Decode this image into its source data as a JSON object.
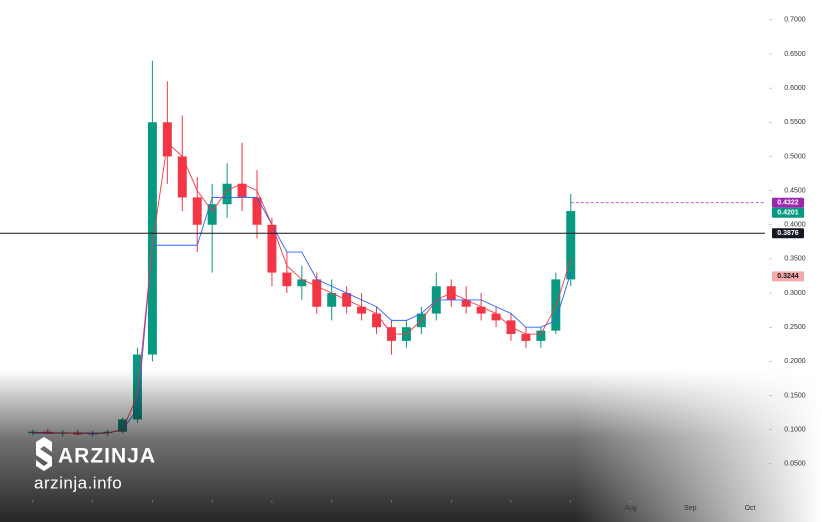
{
  "chart_data": {
    "type": "candlestick",
    "x": [
      0,
      0.25,
      0.5,
      0.75,
      1.0,
      1.25,
      1.5,
      1.75,
      2.0,
      2.25,
      2.5,
      2.75,
      3.0,
      3.25,
      3.5,
      3.75,
      4.0,
      4.25,
      4.5,
      4.75,
      5.0,
      5.25,
      5.5,
      5.75,
      6.0,
      6.25,
      6.5,
      6.75,
      7.0,
      7.25,
      7.5,
      7.75,
      8.0,
      8.25,
      8.5,
      8.75,
      9.0
    ],
    "open": [
      0.095,
      0.097,
      0.094,
      0.096,
      0.093,
      0.095,
      0.097,
      0.115,
      0.21,
      0.55,
      0.5,
      0.44,
      0.4,
      0.43,
      0.46,
      0.44,
      0.4,
      0.33,
      0.31,
      0.32,
      0.28,
      0.3,
      0.28,
      0.27,
      0.25,
      0.23,
      0.25,
      0.27,
      0.31,
      0.29,
      0.28,
      0.27,
      0.26,
      0.24,
      0.23,
      0.245,
      0.32
    ],
    "high": [
      0.1,
      0.101,
      0.099,
      0.1,
      0.098,
      0.1,
      0.118,
      0.22,
      0.64,
      0.61,
      0.56,
      0.47,
      0.46,
      0.49,
      0.52,
      0.48,
      0.41,
      0.36,
      0.34,
      0.33,
      0.32,
      0.31,
      0.3,
      0.28,
      0.26,
      0.26,
      0.28,
      0.33,
      0.32,
      0.31,
      0.3,
      0.28,
      0.27,
      0.25,
      0.25,
      0.33,
      0.445
    ],
    "low": [
      0.092,
      0.093,
      0.09,
      0.092,
      0.09,
      0.091,
      0.095,
      0.11,
      0.2,
      0.46,
      0.42,
      0.36,
      0.33,
      0.41,
      0.42,
      0.38,
      0.31,
      0.3,
      0.29,
      0.27,
      0.26,
      0.27,
      0.26,
      0.24,
      0.21,
      0.22,
      0.24,
      0.26,
      0.28,
      0.27,
      0.26,
      0.25,
      0.23,
      0.22,
      0.22,
      0.24,
      0.31
    ],
    "close": [
      0.097,
      0.094,
      0.096,
      0.093,
      0.095,
      0.097,
      0.115,
      0.21,
      0.55,
      0.5,
      0.44,
      0.4,
      0.43,
      0.46,
      0.44,
      0.4,
      0.33,
      0.31,
      0.32,
      0.28,
      0.3,
      0.28,
      0.27,
      0.25,
      0.23,
      0.25,
      0.27,
      0.31,
      0.29,
      0.28,
      0.27,
      0.26,
      0.24,
      0.23,
      0.245,
      0.32,
      0.42
    ],
    "up_color": "#089981",
    "down_color": "#f23645",
    "series": [
      {
        "color": "#2962ff",
        "values": [
          0.095,
          0.095,
          0.095,
          0.095,
          0.095,
          0.095,
          0.1,
          0.13,
          0.37,
          0.37,
          0.37,
          0.37,
          0.44,
          0.44,
          0.44,
          0.44,
          0.4,
          0.36,
          0.36,
          0.32,
          0.31,
          0.3,
          0.29,
          0.28,
          0.26,
          0.26,
          0.27,
          0.29,
          0.29,
          0.29,
          0.29,
          0.28,
          0.27,
          0.25,
          0.25,
          0.26,
          0.33
        ]
      },
      {
        "color": "#f23645",
        "values": [
          0.096,
          0.096,
          0.095,
          0.095,
          0.094,
          0.095,
          0.1,
          0.15,
          0.37,
          0.52,
          0.5,
          0.45,
          0.42,
          0.45,
          0.46,
          0.45,
          0.4,
          0.34,
          0.32,
          0.31,
          0.3,
          0.29,
          0.28,
          0.27,
          0.24,
          0.24,
          0.26,
          0.29,
          0.3,
          0.29,
          0.28,
          0.27,
          0.25,
          0.24,
          0.24,
          0.28,
          0.35
        ]
      }
    ],
    "price_lines": [
      {
        "value": 0.4322,
        "color": "#9c27b0",
        "dashed": true
      },
      {
        "value": 0.4201,
        "color": "#089981",
        "dashed": false
      },
      {
        "value": 0.3876,
        "color": "#131722",
        "dashed": false
      },
      {
        "value": 0.3244,
        "color": "#f7a8a8",
        "dashed": false
      }
    ],
    "xlim": [
      -0.55,
      12.25
    ],
    "xticks": [
      {
        "value": 0,
        "label": "Oct"
      },
      {
        "value": 1,
        "label": "Nov"
      },
      {
        "value": 2,
        "label": "Dec"
      },
      {
        "value": 3,
        "label": "2025"
      },
      {
        "value": 4,
        "label": "Feb"
      },
      {
        "value": 5,
        "label": "Mar"
      },
      {
        "value": 6,
        "label": "Apr"
      },
      {
        "value": 7,
        "label": "May"
      },
      {
        "value": 8,
        "label": "Jun"
      },
      {
        "value": 9,
        "label": "Jul"
      },
      {
        "value": 10,
        "label": "Aug"
      },
      {
        "value": 11,
        "label": "Sep"
      },
      {
        "value": 12,
        "label": "Oct"
      }
    ],
    "ylim": [
      0,
      0.729
    ],
    "yticks": [
      {
        "value": 0.05,
        "label": "0.0500"
      },
      {
        "value": 0.1,
        "label": "0.1000"
      },
      {
        "value": 0.15,
        "label": "0.1500"
      },
      {
        "value": 0.2,
        "label": "0.2000"
      },
      {
        "value": 0.25,
        "label": "0.2500"
      },
      {
        "value": 0.3,
        "label": "0.3000"
      },
      {
        "value": 0.35,
        "label": "0.3500"
      },
      {
        "value": 0.4,
        "label": "0.4000"
      },
      {
        "value": 0.45,
        "label": "0.4500"
      },
      {
        "value": 0.5,
        "label": "0.5000"
      },
      {
        "value": 0.55,
        "label": "0.5500"
      },
      {
        "value": 0.6,
        "label": "0.6000"
      },
      {
        "value": 0.65,
        "label": "0.6500"
      },
      {
        "value": 0.7,
        "label": "0.7000"
      }
    ]
  },
  "watermark": {
    "brand": "ARZINJA",
    "site": "arzinja.info"
  }
}
